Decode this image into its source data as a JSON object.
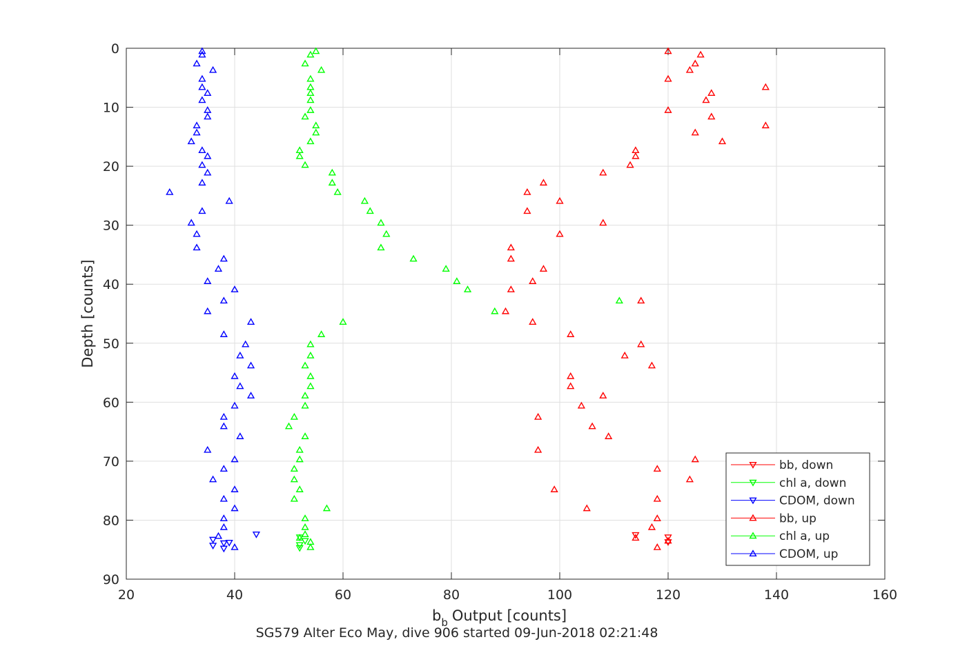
{
  "chart_data": {
    "type": "scatter",
    "xlabel": "b",
    "xlabel_subscript": "b",
    "xlabel_suffix": "Output [counts]",
    "ylabel": "Depth [counts]",
    "caption": "SG579 Alter Eco May, dive 906 started 09-Jun-2018 02:21:48",
    "xlim": [
      20,
      160
    ],
    "ylim": [
      0,
      90
    ],
    "y_reversed": true,
    "grid": true,
    "legend_position": "bottom-right",
    "xticks": [
      "20",
      "40",
      "60",
      "80",
      "100",
      "120",
      "140",
      "160"
    ],
    "yticks": [
      "0",
      "10",
      "20",
      "30",
      "40",
      "50",
      "60",
      "70",
      "80",
      "90"
    ],
    "series": [
      {
        "name": "bb, down",
        "color": "#ff0000",
        "marker": "triangle-down",
        "points": [
          [
            114,
            82.5
          ],
          [
            120,
            82.9
          ],
          [
            120,
            83.7
          ]
        ]
      },
      {
        "name": "chl a, down",
        "color": "#00ff00",
        "marker": "triangle-down",
        "points": [
          [
            52,
            82.9
          ],
          [
            53,
            83.5
          ],
          [
            52,
            84.2
          ],
          [
            52,
            84.7
          ]
        ]
      },
      {
        "name": "CDOM, down",
        "color": "#0000ff",
        "marker": "triangle-down",
        "points": [
          [
            44,
            82.4
          ],
          [
            36,
            83.3
          ],
          [
            38,
            83.9
          ],
          [
            39,
            83.8
          ],
          [
            36,
            84.3
          ],
          [
            38,
            84.8
          ]
        ]
      },
      {
        "name": "bb, up",
        "color": "#ff0000",
        "marker": "triangle-up",
        "points": [
          [
            120,
            0.5
          ],
          [
            126,
            1.1
          ],
          [
            125,
            2.6
          ],
          [
            124,
            3.7
          ],
          [
            120,
            5.2
          ],
          [
            138,
            6.6
          ],
          [
            128,
            7.6
          ],
          [
            127,
            8.8
          ],
          [
            120,
            10.5
          ],
          [
            128,
            11.6
          ],
          [
            138,
            13.1
          ],
          [
            125,
            14.3
          ],
          [
            130,
            15.8
          ],
          [
            114,
            17.3
          ],
          [
            114,
            18.3
          ],
          [
            113,
            19.8
          ],
          [
            108,
            21.1
          ],
          [
            97,
            22.8
          ],
          [
            94,
            24.4
          ],
          [
            100,
            25.9
          ],
          [
            94,
            27.6
          ],
          [
            108,
            29.6
          ],
          [
            100,
            31.5
          ],
          [
            91,
            33.8
          ],
          [
            91,
            35.7
          ],
          [
            97,
            37.4
          ],
          [
            95,
            39.5
          ],
          [
            91,
            40.9
          ],
          [
            115,
            42.8
          ],
          [
            90,
            44.6
          ],
          [
            95,
            46.4
          ],
          [
            102,
            48.5
          ],
          [
            115,
            50.2
          ],
          [
            112,
            52.1
          ],
          [
            117,
            53.8
          ],
          [
            102,
            55.6
          ],
          [
            102,
            57.3
          ],
          [
            108,
            58.9
          ],
          [
            104,
            60.6
          ],
          [
            96,
            62.5
          ],
          [
            106,
            64.1
          ],
          [
            109,
            65.8
          ],
          [
            96,
            68.1
          ],
          [
            125,
            69.7
          ],
          [
            118,
            71.3
          ],
          [
            124,
            73.1
          ],
          [
            99,
            74.8
          ],
          [
            118,
            76.4
          ],
          [
            105,
            78.0
          ],
          [
            118,
            79.7
          ],
          [
            117,
            81.2
          ],
          [
            114,
            83.0
          ],
          [
            120,
            83.5
          ],
          [
            118,
            84.6
          ]
        ]
      },
      {
        "name": "chl a, up",
        "color": "#00ff00",
        "marker": "triangle-up",
        "points": [
          [
            55,
            0.5
          ],
          [
            54,
            1.1
          ],
          [
            53,
            2.6
          ],
          [
            56,
            3.7
          ],
          [
            54,
            5.2
          ],
          [
            54,
            6.6
          ],
          [
            54,
            7.6
          ],
          [
            54,
            8.8
          ],
          [
            54,
            10.5
          ],
          [
            53,
            11.6
          ],
          [
            55,
            13.1
          ],
          [
            55,
            14.3
          ],
          [
            54,
            15.8
          ],
          [
            52,
            17.3
          ],
          [
            52,
            18.3
          ],
          [
            53,
            19.8
          ],
          [
            58,
            21.1
          ],
          [
            58,
            22.8
          ],
          [
            59,
            24.4
          ],
          [
            64,
            25.9
          ],
          [
            65,
            27.6
          ],
          [
            67,
            29.6
          ],
          [
            68,
            31.5
          ],
          [
            67,
            33.8
          ],
          [
            73,
            35.7
          ],
          [
            79,
            37.4
          ],
          [
            81,
            39.5
          ],
          [
            83,
            40.9
          ],
          [
            111,
            42.8
          ],
          [
            88,
            44.6
          ],
          [
            60,
            46.4
          ],
          [
            56,
            48.5
          ],
          [
            54,
            50.2
          ],
          [
            54,
            52.1
          ],
          [
            53,
            53.8
          ],
          [
            54,
            55.6
          ],
          [
            54,
            57.3
          ],
          [
            53,
            58.9
          ],
          [
            53,
            60.6
          ],
          [
            51,
            62.5
          ],
          [
            50,
            64.1
          ],
          [
            53,
            65.8
          ],
          [
            52,
            68.1
          ],
          [
            52,
            69.7
          ],
          [
            51,
            71.3
          ],
          [
            51,
            73.1
          ],
          [
            52,
            74.8
          ],
          [
            51,
            76.4
          ],
          [
            57,
            78.0
          ],
          [
            53,
            79.7
          ],
          [
            53,
            81.2
          ],
          [
            53,
            82.4
          ],
          [
            52,
            83.0
          ],
          [
            54,
            83.7
          ],
          [
            54,
            84.6
          ]
        ]
      },
      {
        "name": "CDOM, up",
        "color": "#0000ff",
        "marker": "triangle-up",
        "points": [
          [
            34,
            0.5
          ],
          [
            34,
            1.1
          ],
          [
            33,
            2.6
          ],
          [
            36,
            3.7
          ],
          [
            34,
            5.2
          ],
          [
            34,
            6.6
          ],
          [
            35,
            7.6
          ],
          [
            34,
            8.8
          ],
          [
            35,
            10.5
          ],
          [
            35,
            11.6
          ],
          [
            33,
            13.1
          ],
          [
            33,
            14.3
          ],
          [
            32,
            15.8
          ],
          [
            34,
            17.3
          ],
          [
            35,
            18.3
          ],
          [
            34,
            19.8
          ],
          [
            35,
            21.1
          ],
          [
            34,
            22.8
          ],
          [
            28,
            24.4
          ],
          [
            39,
            25.9
          ],
          [
            34,
            27.6
          ],
          [
            32,
            29.6
          ],
          [
            33,
            31.5
          ],
          [
            33,
            33.8
          ],
          [
            38,
            35.7
          ],
          [
            37,
            37.4
          ],
          [
            35,
            39.5
          ],
          [
            40,
            40.9
          ],
          [
            38,
            42.8
          ],
          [
            35,
            44.6
          ],
          [
            43,
            46.4
          ],
          [
            38,
            48.5
          ],
          [
            42,
            50.2
          ],
          [
            41,
            52.1
          ],
          [
            43,
            53.8
          ],
          [
            40,
            55.6
          ],
          [
            41,
            57.3
          ],
          [
            43,
            58.9
          ],
          [
            40,
            60.6
          ],
          [
            38,
            62.5
          ],
          [
            38,
            64.1
          ],
          [
            41,
            65.8
          ],
          [
            35,
            68.1
          ],
          [
            40,
            69.7
          ],
          [
            38,
            71.3
          ],
          [
            36,
            73.1
          ],
          [
            40,
            74.8
          ],
          [
            38,
            76.4
          ],
          [
            40,
            78.0
          ],
          [
            38,
            79.7
          ],
          [
            38,
            81.2
          ],
          [
            37,
            82.7
          ],
          [
            40,
            84.6
          ]
        ]
      }
    ]
  }
}
